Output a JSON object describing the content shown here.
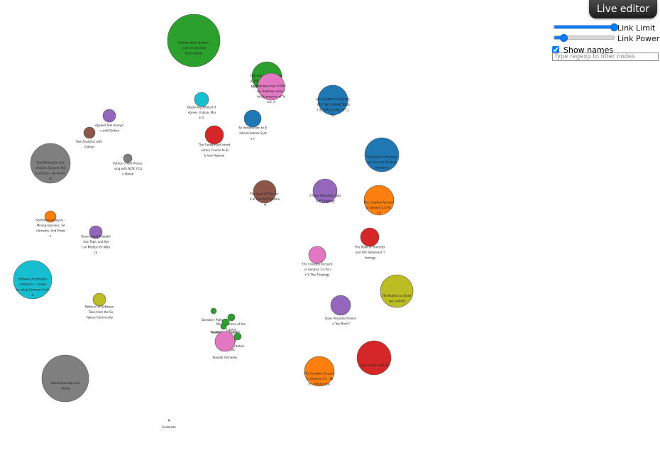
{
  "editor": {
    "button_label": "Live editor"
  },
  "controls": {
    "link_limit": {
      "label": "Link Limit",
      "value": 1.0
    },
    "link_power": {
      "label": "Link Power",
      "value": 0.15
    },
    "show_names": {
      "label": "Show names",
      "checked": true
    },
    "filter": {
      "placeholder": "Type regexp to filter nodes",
      "value": ""
    }
  },
  "nodes": [
    {
      "label": "Hebrew book lessons - learn to read bib lical hebrew",
      "color": "#2ca02c"
    },
    {
      "label": "THE BIBLICAL HEBREW VERBAL SYSTEM: A SPA NNING THE CONTINUITY",
      "color": "#2ca02c"
    },
    {
      "label": "Making sense of Biblica l Hebrew verbs The Ex pression of Tense, A",
      "color": "#e377c2"
    },
    {
      "label": "Beginning Biblical H ebrew - Fabulo, Mark D",
      "color": "#17becf"
    },
    {
      "label": "AN ATTEMPT TO DEFINE ATE THE CHARACTERIST IC STRUCTURE OF CLAS",
      "color": "#1f77b4"
    },
    {
      "label": "An Introduction to B iblical Hebrew Synta x",
      "color": "#1f77b4"
    },
    {
      "label": "Applied Text Analysi s with Python",
      "color": "#9467bd"
    },
    {
      "label": "The Fundament Introd uctory Course to Bib lical Hebrew",
      "color": "#d62728"
    },
    {
      "label": "Text Analytics with Python",
      "color": "#8c564b"
    },
    {
      "label": "Python 3 Text Proces sing with NLTK 3 Coo kbook",
      "color": "#7f7f7f"
    },
    {
      "label": "Text Mining For Info rmation Systems Rese archers - An Annotat",
      "color": "#7f7f7f"
    },
    {
      "label": "The Book of Proverbs and Ancient Wisdom Literature",
      "color": "#1f77b4"
    },
    {
      "label": "The Land Of The Lor d In The Old Testame nt",
      "color": "#8c564b"
    },
    {
      "label": "A New Testament Bibl ical Theology",
      "color": "#9467bd"
    },
    {
      "label": "The Creation Account in Genesis 1-3 Pa rt V",
      "color": "#ff7f0e"
    },
    {
      "label": "Sentiment Analysis - Mining Opinions, Se ntiments, And Emotio",
      "color": "#ff7f0e"
    },
    {
      "label": "Generalized Probabil istic Topic and Synt ax Models for Natura",
      "color": "#9467bd"
    },
    {
      "label": "The Book of Proverbs and Old Testament T heology",
      "color": "#d62728"
    },
    {
      "label": "The Creation Account in Genesis 1-3 Pa rt IV The Theology",
      "color": "#e377c2"
    },
    {
      "label": "Software Architectur e Patterns - Understa nding Common Archit",
      "color": "#17becf"
    },
    {
      "label": "The Psalms as Christ ian Lament",
      "color": "#bcbd22"
    },
    {
      "label": "Patterns of Software - Tales from the So ftware Community",
      "color": "#bcbd22"
    },
    {
      "label": "Does Proverbs Promis e Too Much?",
      "color": "#9467bd"
    },
    {
      "label": "Bonobo's Python",
      "color": "#2ca02c"
    },
    {
      "label": "Major Themes of the Lipsius",
      "color": "#2ca02c"
    },
    {
      "label": "Legends of the Jews",
      "color": "#2ca02c"
    },
    {
      "label": "The Pleasures of Ill-Health",
      "color": "#2ca02c"
    },
    {
      "label": "Invitation",
      "color": "#2ca02c"
    },
    {
      "label": "Jak",
      "color": "#2ca02c"
    },
    {
      "label": "Roodial Yochedes",
      "color": "#e377c2"
    },
    {
      "label": "Cain and His Wife R",
      "color": "#d62728"
    },
    {
      "label": "Interactive topic mo deling",
      "color": "#7f7f7f"
    },
    {
      "label": "The Creation Account in Genesis 1-3 - Part I Introduction",
      "color": "#ff7f0e"
    },
    {
      "label": "Sunbeirte",
      "color": "#7f7f7f"
    }
  ]
}
